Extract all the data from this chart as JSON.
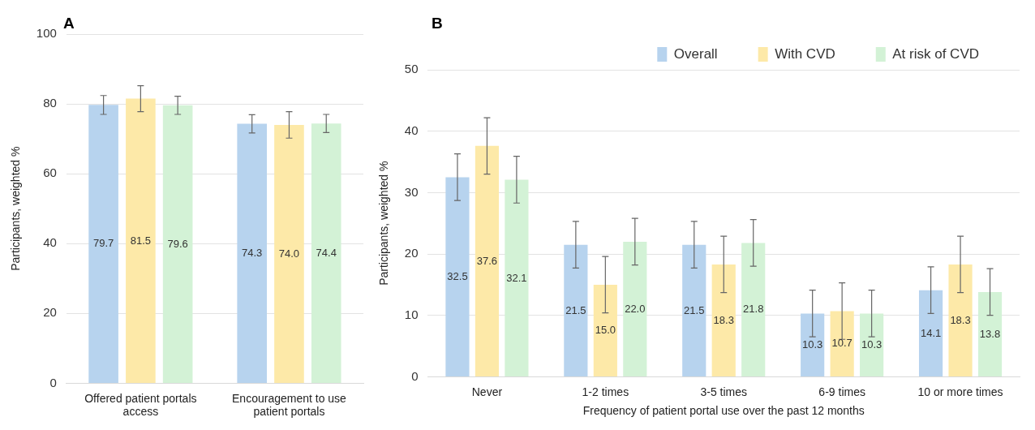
{
  "chart_data": [
    {
      "type": "bar",
      "title": "A",
      "ylabel": "Participants, weighted %",
      "categories": [
        "Offered patient portals access",
        "Encouragement to use patient portals"
      ],
      "series": [
        {
          "color": "#b7d3ee",
          "values": [
            79.7,
            74.3
          ],
          "value_labels": [
            "79.7",
            "74.3"
          ],
          "errors": [
            2.7,
            2.6
          ]
        },
        {
          "color": "#fde9a8",
          "values": [
            81.5,
            74.0
          ],
          "value_labels": [
            "81.5",
            "74.0"
          ],
          "errors": [
            3.7,
            3.8
          ]
        },
        {
          "color": "#d3f2d6",
          "values": [
            79.6,
            74.4
          ],
          "value_labels": [
            "79.6",
            "74.4"
          ],
          "errors": [
            2.6,
            2.6
          ]
        }
      ],
      "ylim": [
        0,
        100
      ],
      "yticks": [
        0,
        20,
        40,
        60,
        80,
        100
      ],
      "grid": "y",
      "legend": false
    },
    {
      "type": "bar",
      "title": "B",
      "ylabel": "Participants, weighted %",
      "xlabel": "Frequency of patient portal use over the past 12 months",
      "categories": [
        "Never",
        "1-2 times",
        "3-5 times",
        "6-9 times",
        "10 or more times"
      ],
      "series": [
        {
          "name": "Overall",
          "color": "#b7d3ee",
          "values": [
            32.5,
            21.5,
            21.5,
            10.3,
            14.1
          ],
          "value_labels": [
            "32.5",
            "21.5",
            "21.5",
            "10.3",
            "14.1"
          ],
          "errors": [
            3.8,
            3.8,
            3.8,
            3.8,
            3.8
          ]
        },
        {
          "name": "With CVD",
          "color": "#fde9a8",
          "values": [
            37.6,
            15.0,
            18.3,
            10.7,
            18.3
          ],
          "value_labels": [
            "37.6",
            "15.0",
            "18.3",
            "10.7",
            "18.3"
          ],
          "errors": [
            4.6,
            4.6,
            4.6,
            4.6,
            4.6
          ]
        },
        {
          "name": "At risk of CVD",
          "color": "#d3f2d6",
          "values": [
            32.1,
            22.0,
            21.8,
            10.3,
            13.8
          ],
          "value_labels": [
            "32.1",
            "22.0",
            "21.8",
            "10.3",
            "13.8"
          ],
          "errors": [
            3.8,
            3.8,
            3.8,
            3.8,
            3.8
          ]
        }
      ],
      "ylim": [
        0,
        50
      ],
      "yticks": [
        0,
        10,
        20,
        30,
        40,
        50
      ],
      "grid": "y",
      "legend": "top right"
    }
  ]
}
